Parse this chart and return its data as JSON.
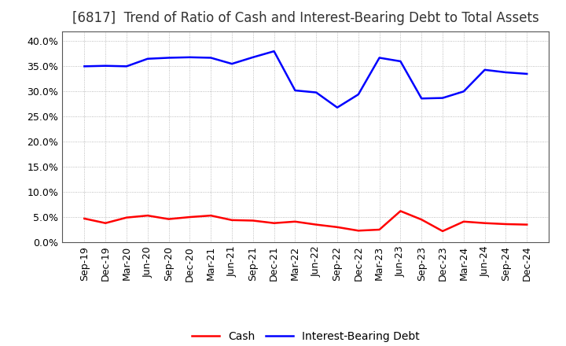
{
  "title": "[6817]  Trend of Ratio of Cash and Interest-Bearing Debt to Total Assets",
  "labels": [
    "Sep-19",
    "Dec-19",
    "Mar-20",
    "Jun-20",
    "Sep-20",
    "Dec-20",
    "Mar-21",
    "Jun-21",
    "Sep-21",
    "Dec-21",
    "Mar-22",
    "Jun-22",
    "Sep-22",
    "Dec-22",
    "Mar-23",
    "Jun-23",
    "Sep-23",
    "Dec-23",
    "Mar-24",
    "Jun-24",
    "Sep-24",
    "Dec-24"
  ],
  "cash": [
    4.7,
    3.8,
    4.9,
    5.3,
    4.6,
    5.0,
    5.3,
    4.4,
    4.3,
    3.8,
    4.1,
    3.5,
    3.0,
    2.3,
    2.5,
    6.2,
    4.5,
    2.2,
    4.1,
    3.8,
    3.6,
    3.5
  ],
  "debt": [
    35.0,
    35.1,
    35.0,
    36.5,
    36.7,
    36.8,
    36.7,
    35.5,
    36.8,
    38.0,
    30.2,
    29.8,
    26.8,
    29.4,
    36.7,
    36.0,
    28.6,
    28.7,
    30.0,
    34.3,
    33.8,
    33.5
  ],
  "cash_color": "#ff0000",
  "debt_color": "#0000ff",
  "background_color": "#ffffff",
  "grid_color": "#aaaaaa",
  "ylim": [
    0,
    42
  ],
  "yticks": [
    0.0,
    5.0,
    10.0,
    15.0,
    20.0,
    25.0,
    30.0,
    35.0,
    40.0
  ],
  "title_fontsize": 12,
  "title_color": "#333333",
  "legend_labels": [
    "Cash",
    "Interest-Bearing Debt"
  ],
  "line_width": 1.8,
  "tick_fontsize": 9,
  "legend_fontsize": 10
}
